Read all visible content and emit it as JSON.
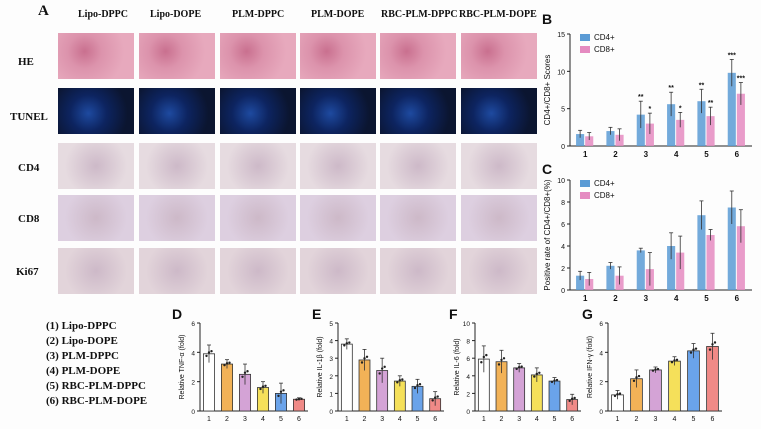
{
  "panel_A": {
    "label": "A",
    "columns": [
      "Lipo-DPPC",
      "Lipo-DOPE",
      "PLM-DPPC",
      "PLM-DOPE",
      "RBC-PLM-DPPC",
      "RBC-PLM-DOPE"
    ],
    "rows": [
      "HE",
      "TUNEL",
      "CD4",
      "CD8",
      "Ki67"
    ],
    "row_colors": {
      "HE": "#e7a9bd",
      "TUNEL": "#0b1530",
      "CD4": "#e6dbe0",
      "CD8": "#ddcfe0",
      "Ki67": "#e2d4da"
    }
  },
  "group_legend": [
    "(1) Lipo-DPPC",
    "(2) Lipo-DOPE",
    "(3) PLM-DPPC",
    "(4) PLM-DOPE",
    "(5) RBC-PLM-DPPC",
    "(6) RBC-PLM-DOPE"
  ],
  "chart_data": [
    {
      "panel": "B",
      "type": "bar",
      "categories": [
        "1",
        "2",
        "3",
        "4",
        "5",
        "6"
      ],
      "ylabel": "CD4+/CD8+ Scores",
      "ylim": [
        0,
        15
      ],
      "yticks": [
        0,
        5,
        10,
        15
      ],
      "legend": "top-left",
      "series": [
        {
          "name": "CD4+",
          "color": "#5b9bd5",
          "values": [
            1.6,
            2.0,
            4.2,
            5.6,
            6.0,
            9.8
          ],
          "errors": [
            0.5,
            0.5,
            1.8,
            1.6,
            1.6,
            1.8
          ],
          "significance": [
            "",
            "",
            "**",
            "**",
            "**",
            "***"
          ]
        },
        {
          "name": "CD8+",
          "color": "#e58bc1",
          "values": [
            1.3,
            1.5,
            3.0,
            3.5,
            4.0,
            7.0
          ],
          "errors": [
            0.5,
            0.8,
            1.4,
            1.0,
            1.2,
            1.5
          ],
          "significance": [
            "",
            "",
            "*",
            "*",
            "**",
            "***"
          ]
        }
      ]
    },
    {
      "panel": "C",
      "type": "bar",
      "categories": [
        "1",
        "2",
        "3",
        "4",
        "5",
        "6"
      ],
      "ylabel": "Positive rate of CD4+/CD8+(%)",
      "ylim": [
        0,
        10
      ],
      "yticks": [
        0,
        2,
        4,
        6,
        8,
        10
      ],
      "legend": "top-left",
      "series": [
        {
          "name": "CD4+",
          "color": "#5b9bd5",
          "values": [
            1.3,
            2.2,
            3.6,
            4.0,
            6.8,
            7.5
          ],
          "errors": [
            0.4,
            0.3,
            0.2,
            1.2,
            1.3,
            1.5
          ]
        },
        {
          "name": "CD8+",
          "color": "#e58bc1",
          "values": [
            1.0,
            1.3,
            1.9,
            3.4,
            5.0,
            5.8
          ],
          "errors": [
            0.6,
            0.8,
            1.5,
            1.5,
            0.5,
            1.5
          ]
        }
      ]
    },
    {
      "panel": "D",
      "type": "bar",
      "categories": [
        "1",
        "2",
        "3",
        "4",
        "5",
        "6"
      ],
      "ylabel": "Relative TNF-α (fold)",
      "ylim": [
        0,
        6
      ],
      "yticks": [
        0,
        2,
        4,
        6
      ],
      "colors": [
        "#ffffff",
        "#f2b257",
        "#d4a3d6",
        "#f5e05a",
        "#6aa3ea",
        "#f08a87"
      ],
      "values": [
        3.9,
        3.2,
        2.5,
        1.6,
        1.2,
        0.8
      ],
      "errors": [
        0.6,
        0.3,
        0.7,
        0.4,
        0.7,
        0.1
      ]
    },
    {
      "panel": "E",
      "type": "bar",
      "categories": [
        "1",
        "2",
        "3",
        "4",
        "5",
        "6"
      ],
      "ylabel": "Relative IL-1β (fold)",
      "ylim": [
        0,
        5
      ],
      "yticks": [
        0,
        1,
        2,
        3,
        4,
        5
      ],
      "colors": [
        "#ffffff",
        "#f2b257",
        "#d4a3d6",
        "#f5e05a",
        "#6aa3ea",
        "#f08a87"
      ],
      "values": [
        3.8,
        2.9,
        2.3,
        1.7,
        1.4,
        0.7
      ],
      "errors": [
        0.3,
        0.6,
        0.7,
        0.3,
        0.4,
        0.4
      ]
    },
    {
      "panel": "F",
      "type": "bar",
      "categories": [
        "1",
        "2",
        "3",
        "4",
        "5",
        "6"
      ],
      "ylabel": "Relative IL-6 (fold)",
      "ylim": [
        0,
        10
      ],
      "yticks": [
        0,
        2,
        4,
        6,
        8,
        10
      ],
      "colors": [
        "#ffffff",
        "#f2b257",
        "#d4a3d6",
        "#f5e05a",
        "#6aa3ea",
        "#f08a87"
      ],
      "values": [
        5.9,
        5.6,
        4.9,
        4.1,
        3.4,
        1.3
      ],
      "errors": [
        1.5,
        1.3,
        0.5,
        0.8,
        0.4,
        0.6
      ]
    },
    {
      "panel": "G",
      "type": "bar",
      "categories": [
        "1",
        "2",
        "3",
        "4",
        "5",
        "6"
      ],
      "ylabel": "Relative IFN-γ (fold)",
      "ylim": [
        0,
        6
      ],
      "yticks": [
        0,
        2,
        4,
        6
      ],
      "colors": [
        "#ffffff",
        "#f2b257",
        "#d4a3d6",
        "#f5e05a",
        "#6aa3ea",
        "#f08a87"
      ],
      "values": [
        1.1,
        2.2,
        2.8,
        3.4,
        4.1,
        4.4
      ],
      "errors": [
        0.3,
        0.6,
        0.2,
        0.3,
        0.5,
        0.9
      ]
    }
  ]
}
